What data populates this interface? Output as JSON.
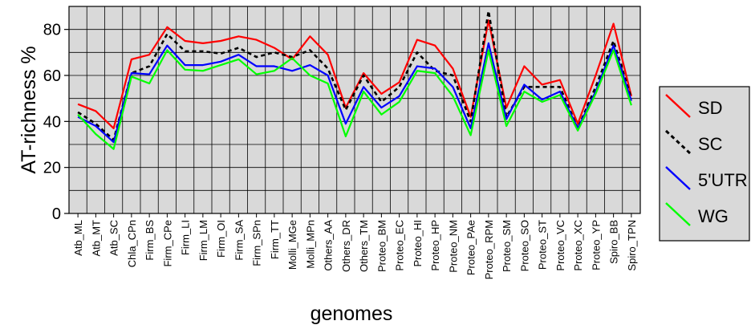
{
  "chart_data": {
    "type": "line",
    "title": "",
    "xlabel": "genomes",
    "ylabel": "AT-richness %",
    "ylim": [
      0,
      90
    ],
    "yticks": [
      0,
      20,
      40,
      60,
      80
    ],
    "grid": true,
    "legend_position": "right",
    "plot_background": "#d9d9d9",
    "categories": [
      "Atb_ML",
      "Atb_MT",
      "Atb_SC",
      "Chla_CPn",
      "Firm_BS",
      "Firm_CPe",
      "Firm_LI",
      "Firm_LM",
      "Firm_OI",
      "Firm_SA",
      "Firm_SPn",
      "Firm_TT",
      "Molli_MGe",
      "Molli_MPn",
      "Others_AA",
      "Others_DR",
      "Others_TM",
      "Proteo_BM",
      "Proteo_EC",
      "Proteo_HI",
      "Proteo_HP",
      "Proteo_NM",
      "Proteo_PAe",
      "Proteo_RPM",
      "Proteo_SM",
      "Proteo_SO",
      "Proteo_ST",
      "Proteo_VC",
      "Proteo_XC",
      "Proteo_YP",
      "Spiro_BB",
      "Spiro_TPN"
    ],
    "series": [
      {
        "name": "SD",
        "color": "#ff0000",
        "dash": "solid",
        "values": [
          47.5,
          44.5,
          37,
          67,
          69,
          81,
          75,
          74,
          75,
          77,
          75.5,
          72,
          67,
          77,
          69,
          46,
          61,
          52,
          57,
          75.5,
          73,
          63,
          42,
          84,
          46,
          64,
          56,
          58,
          39,
          60,
          82.5,
          51
        ]
      },
      {
        "name": "SC",
        "color": "#000000",
        "dash": "dashed",
        "values": [
          44,
          39,
          32,
          61,
          64,
          78,
          70.5,
          70.5,
          69.5,
          72,
          68,
          70,
          68,
          71,
          63,
          45,
          60,
          48.5,
          55,
          70,
          62,
          60,
          40,
          88,
          42,
          55,
          55,
          55,
          37,
          55,
          75,
          50
        ]
      },
      {
        "name": "5'UTR",
        "color": "#0000ff",
        "dash": "solid",
        "values": [
          42,
          38,
          31,
          61,
          60.5,
          73,
          64.5,
          64.5,
          66,
          69,
          64,
          64,
          62,
          64.5,
          60,
          39,
          55,
          46,
          51,
          64,
          63,
          55,
          37,
          74,
          41,
          56,
          49.5,
          53,
          37,
          53,
          73,
          49
        ]
      },
      {
        "name": "WG",
        "color": "#00ff00",
        "dash": "solid",
        "values": [
          43,
          34.5,
          28,
          59.5,
          56.5,
          71,
          62.5,
          62,
          64.5,
          67,
          60.5,
          62,
          67.5,
          60,
          56.5,
          33.5,
          53,
          43,
          48.5,
          62,
          61,
          51,
          34,
          71,
          38,
          53,
          48.5,
          51.5,
          36,
          52,
          71,
          47
        ]
      }
    ]
  }
}
